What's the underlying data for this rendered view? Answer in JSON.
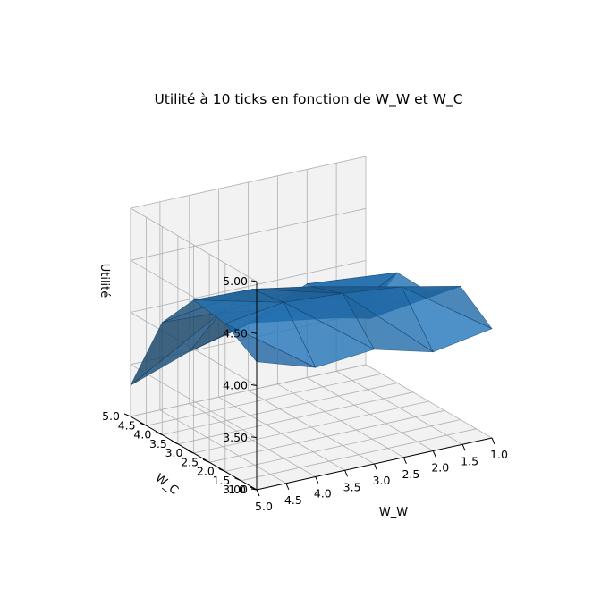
{
  "chart_data": {
    "type": "surface",
    "title": "Utilité à 10 ticks en fonction de W_W et W_C",
    "xlabel": "W_W",
    "ylabel": "W_C",
    "zlabel": "Utilité",
    "xlim": [
      1.0,
      5.0
    ],
    "ylim": [
      1.0,
      5.0
    ],
    "zlim": [
      3.0,
      5.0
    ],
    "x_ticks": [
      1.0,
      1.5,
      2.0,
      2.5,
      3.0,
      3.5,
      4.0,
      4.5,
      5.0
    ],
    "y_ticks": [
      1.0,
      1.5,
      2.0,
      2.5,
      3.0,
      3.5,
      4.0,
      4.5,
      5.0
    ],
    "z_ticks": [
      3.0,
      3.5,
      4.0,
      4.5,
      5.0
    ],
    "x_tick_labels": [
      "1.0",
      "1.5",
      "2.0",
      "2.5",
      "3.0",
      "3.5",
      "4.0",
      "4.5",
      "5.0"
    ],
    "y_tick_labels": [
      "1.0",
      "1.5",
      "2.0",
      "2.5",
      "3.0",
      "3.5",
      "4.0",
      "4.5",
      "5.0"
    ],
    "z_tick_labels": [
      "3.00",
      "3.50",
      "4.00",
      "4.50",
      "5.00"
    ],
    "x": [
      1,
      2,
      3,
      4,
      5
    ],
    "y": [
      1,
      2,
      3,
      4,
      5
    ],
    "z": [
      [
        4.05,
        3.95,
        4.1,
        4.05,
        4.23
      ],
      [
        4.28,
        4.4,
        4.46,
        4.5,
        4.42
      ],
      [
        4.05,
        3.92,
        4.35,
        4.45,
        4.47
      ],
      [
        4.06,
        3.75,
        3.95,
        4.05,
        4.08
      ],
      [
        3.5,
        3.9,
        3.65,
        3.5,
        3.3
      ]
    ],
    "grid": true,
    "surface_color": "#1f5f94",
    "pane_color": "#f2f2f2",
    "grid_color": "#b0b0b0"
  }
}
